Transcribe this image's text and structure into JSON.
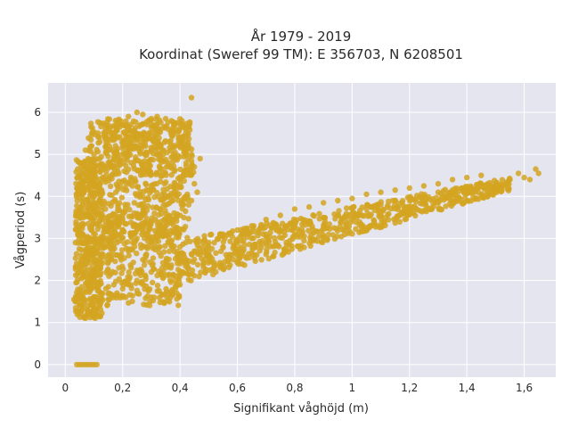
{
  "chart_data": {
    "type": "scatter",
    "title_lines": [
      "År 1979 - 2019",
      "Koordinat (Sweref 99 TM): E 356703, N 6208501"
    ],
    "xlabel": "Signifikant våghöjd (m)",
    "ylabel": "Vågperiod (s)",
    "xlim": [
      -0.06,
      1.71
    ],
    "ylim": [
      -0.3,
      6.7
    ],
    "x_ticks": [
      0,
      0.2,
      0.4,
      0.6,
      0.8,
      1,
      1.2,
      1.4,
      1.6
    ],
    "x_tick_labels": [
      "0",
      "0,2",
      "0,4",
      "0,6",
      "0,8",
      "1",
      "1,2",
      "1,4",
      "1,6"
    ],
    "y_ticks": [
      0,
      1,
      2,
      3,
      4,
      5,
      6
    ],
    "y_tick_labels": [
      "0",
      "1",
      "2",
      "3",
      "4",
      "5",
      "6"
    ],
    "grid": true,
    "colors": {
      "marker": "#d4a421",
      "plot_background": "#e5e5f0",
      "grid": "#ffffff"
    },
    "series": [
      {
        "points": [
          [
            0.04,
            0
          ],
          [
            0.05,
            0
          ],
          [
            0.06,
            0
          ],
          [
            0.07,
            0
          ],
          [
            0.08,
            0
          ],
          [
            0.09,
            0
          ],
          [
            0.1,
            0
          ],
          [
            0.11,
            0
          ],
          [
            0.04,
            4.2
          ],
          [
            0.05,
            4.8
          ],
          [
            0.06,
            4.6
          ],
          [
            0.07,
            5.1
          ],
          [
            0.08,
            4.9
          ],
          [
            0.09,
            5.2
          ],
          [
            0.1,
            5.0
          ],
          [
            0.12,
            5.3
          ],
          [
            0.14,
            5.4
          ],
          [
            0.16,
            5.5
          ],
          [
            0.18,
            5.6
          ],
          [
            0.2,
            5.7
          ],
          [
            0.22,
            5.9
          ],
          [
            0.25,
            6.0
          ],
          [
            0.27,
            5.95
          ],
          [
            0.3,
            5.85
          ],
          [
            0.32,
            5.9
          ],
          [
            0.35,
            5.85
          ],
          [
            0.37,
            5.8
          ],
          [
            0.39,
            5.75
          ],
          [
            0.41,
            5.7
          ],
          [
            0.42,
            5.5
          ],
          [
            0.43,
            5.2
          ],
          [
            0.44,
            5.0
          ],
          [
            0.06,
            3.8
          ],
          [
            0.08,
            4.2
          ],
          [
            0.1,
            4.3
          ],
          [
            0.12,
            4.6
          ],
          [
            0.15,
            4.8
          ],
          [
            0.18,
            5.0
          ],
          [
            0.2,
            5.2
          ],
          [
            0.22,
            5.3
          ],
          [
            0.24,
            5.4
          ],
          [
            0.26,
            5.3
          ],
          [
            0.28,
            5.2
          ],
          [
            0.3,
            5.1
          ],
          [
            0.33,
            5.0
          ],
          [
            0.36,
            4.8
          ],
          [
            0.38,
            4.6
          ],
          [
            0.4,
            4.4
          ],
          [
            0.42,
            4.0
          ],
          [
            0.43,
            3.8
          ],
          [
            0.04,
            1.6
          ],
          [
            0.05,
            1.5
          ],
          [
            0.06,
            1.3
          ],
          [
            0.07,
            1.1
          ],
          [
            0.08,
            1.2
          ],
          [
            0.1,
            1.25
          ],
          [
            0.12,
            1.4
          ],
          [
            0.15,
            1.55
          ],
          [
            0.18,
            1.7
          ],
          [
            0.2,
            1.8
          ],
          [
            0.22,
            1.9
          ],
          [
            0.25,
            2.0
          ],
          [
            0.28,
            2.1
          ],
          [
            0.3,
            2.2
          ],
          [
            0.35,
            2.3
          ],
          [
            0.4,
            2.4
          ],
          [
            0.05,
            2.2
          ],
          [
            0.08,
            2.6
          ],
          [
            0.1,
            3.0
          ],
          [
            0.12,
            3.3
          ],
          [
            0.14,
            2.8
          ],
          [
            0.16,
            2.5
          ],
          [
            0.18,
            2.9
          ],
          [
            0.2,
            3.2
          ],
          [
            0.22,
            2.7
          ],
          [
            0.25,
            3.0
          ],
          [
            0.28,
            2.6
          ],
          [
            0.3,
            2.9
          ],
          [
            0.33,
            2.8
          ],
          [
            0.36,
            2.9
          ],
          [
            0.4,
            2.8
          ],
          [
            0.42,
            2.9
          ],
          [
            0.45,
            2.7
          ],
          [
            0.48,
            2.9
          ],
          [
            0.5,
            2.8
          ],
          [
            0.05,
            3.5
          ],
          [
            0.08,
            3.6
          ],
          [
            0.1,
            3.8
          ],
          [
            0.12,
            3.9
          ],
          [
            0.14,
            3.7
          ],
          [
            0.17,
            3.5
          ],
          [
            0.2,
            3.4
          ],
          [
            0.24,
            3.6
          ],
          [
            0.27,
            3.3
          ],
          [
            0.3,
            3.4
          ],
          [
            0.03,
            1.55
          ],
          [
            0.035,
            1.5
          ],
          [
            0.45,
            2.5
          ],
          [
            0.5,
            2.6
          ],
          [
            0.55,
            2.8
          ],
          [
            0.6,
            2.9
          ],
          [
            0.65,
            3.0
          ],
          [
            0.7,
            3.1
          ],
          [
            0.75,
            3.2
          ],
          [
            0.8,
            3.3
          ],
          [
            0.85,
            3.4
          ],
          [
            0.9,
            3.5
          ],
          [
            0.95,
            3.55
          ],
          [
            1.0,
            3.6
          ],
          [
            1.05,
            3.7
          ],
          [
            1.1,
            3.8
          ],
          [
            1.15,
            3.9
          ],
          [
            1.2,
            3.95
          ],
          [
            1.25,
            4.0
          ],
          [
            1.3,
            4.1
          ],
          [
            1.35,
            4.15
          ],
          [
            1.4,
            4.2
          ],
          [
            1.45,
            4.3
          ],
          [
            1.5,
            4.3
          ],
          [
            1.55,
            4.4
          ],
          [
            0.5,
            2.9
          ],
          [
            0.55,
            3.1
          ],
          [
            0.6,
            3.2
          ],
          [
            0.65,
            3.3
          ],
          [
            0.7,
            3.45
          ],
          [
            0.75,
            3.55
          ],
          [
            0.8,
            3.7
          ],
          [
            0.85,
            3.75
          ],
          [
            0.9,
            3.85
          ],
          [
            0.95,
            3.9
          ],
          [
            1.0,
            3.95
          ],
          [
            1.05,
            4.05
          ],
          [
            1.1,
            4.1
          ],
          [
            1.15,
            4.15
          ],
          [
            1.2,
            4.2
          ],
          [
            1.25,
            4.25
          ],
          [
            1.3,
            4.3
          ],
          [
            0.6,
            2.7
          ],
          [
            0.7,
            2.9
          ],
          [
            0.8,
            3.1
          ],
          [
            0.9,
            3.3
          ],
          [
            1.0,
            3.45
          ],
          [
            1.1,
            3.6
          ],
          [
            1.2,
            3.75
          ],
          [
            1.3,
            3.85
          ],
          [
            1.35,
            4.4
          ],
          [
            1.4,
            4.45
          ],
          [
            1.45,
            4.5
          ],
          [
            1.5,
            4.2
          ],
          [
            1.52,
            4.25
          ],
          [
            1.58,
            4.55
          ],
          [
            1.6,
            4.45
          ],
          [
            1.62,
            4.4
          ],
          [
            1.64,
            4.65
          ],
          [
            1.65,
            4.55
          ],
          [
            0.44,
            6.35
          ],
          [
            0.47,
            4.9
          ],
          [
            0.45,
            4.3
          ],
          [
            0.46,
            4.1
          ],
          [
            0.44,
            3.9
          ],
          [
            0.4,
            2.1
          ],
          [
            0.41,
            2.2
          ],
          [
            0.42,
            2.4
          ],
          [
            0.4,
            1.9
          ]
        ]
      }
    ],
    "plot_area_note": ""
  }
}
